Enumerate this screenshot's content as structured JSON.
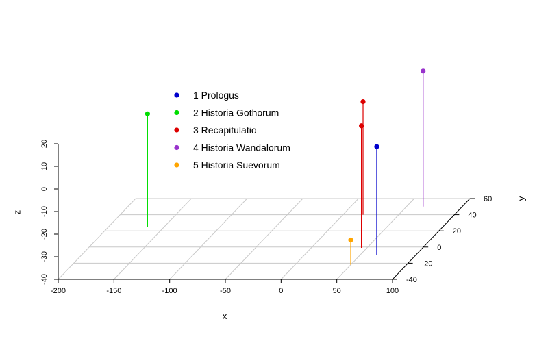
{
  "chart_data": {
    "type": "scatter3d",
    "title": "",
    "xlabel": "x",
    "ylabel": "y",
    "zlabel": "z",
    "xlim": [
      -200,
      100
    ],
    "ylim": [
      -40,
      60
    ],
    "zlim": [
      -40,
      20
    ],
    "x_ticks": [
      -200,
      -150,
      -100,
      -50,
      0,
      50,
      100
    ],
    "y_ticks": [
      -40,
      -20,
      0,
      20,
      40,
      60
    ],
    "z_ticks": [
      -40,
      -30,
      -20,
      -10,
      0,
      10,
      20
    ],
    "grid": true,
    "legend_position": "top-left",
    "series": [
      {
        "name": "1 Prologus",
        "color": "#0000cc",
        "marker": "circle",
        "points": [
          {
            "x": 65,
            "y": -10,
            "z": 8
          }
        ]
      },
      {
        "name": "2 Historia Gothorum",
        "color": "#00dd00",
        "marker": "circle",
        "points": [
          {
            "x": -165,
            "y": 25,
            "z": 10
          }
        ]
      },
      {
        "name": "3 Recapitulatio",
        "color": "#dd0000",
        "marker": "circle",
        "points": [
          {
            "x": 45,
            "y": -1,
            "z": 14
          },
          {
            "x": 18,
            "y": 40,
            "z": 10
          }
        ]
      },
      {
        "name": "4 Historia Wandalorum",
        "color": "#9933cc",
        "marker": "circle",
        "points": [
          {
            "x": 65,
            "y": 50,
            "z": 20
          }
        ]
      },
      {
        "name": "5 Historia Suevorum",
        "color": "#ffa500",
        "marker": "circle",
        "points": [
          {
            "x": 50,
            "y": -22,
            "z": -29
          }
        ]
      }
    ]
  }
}
